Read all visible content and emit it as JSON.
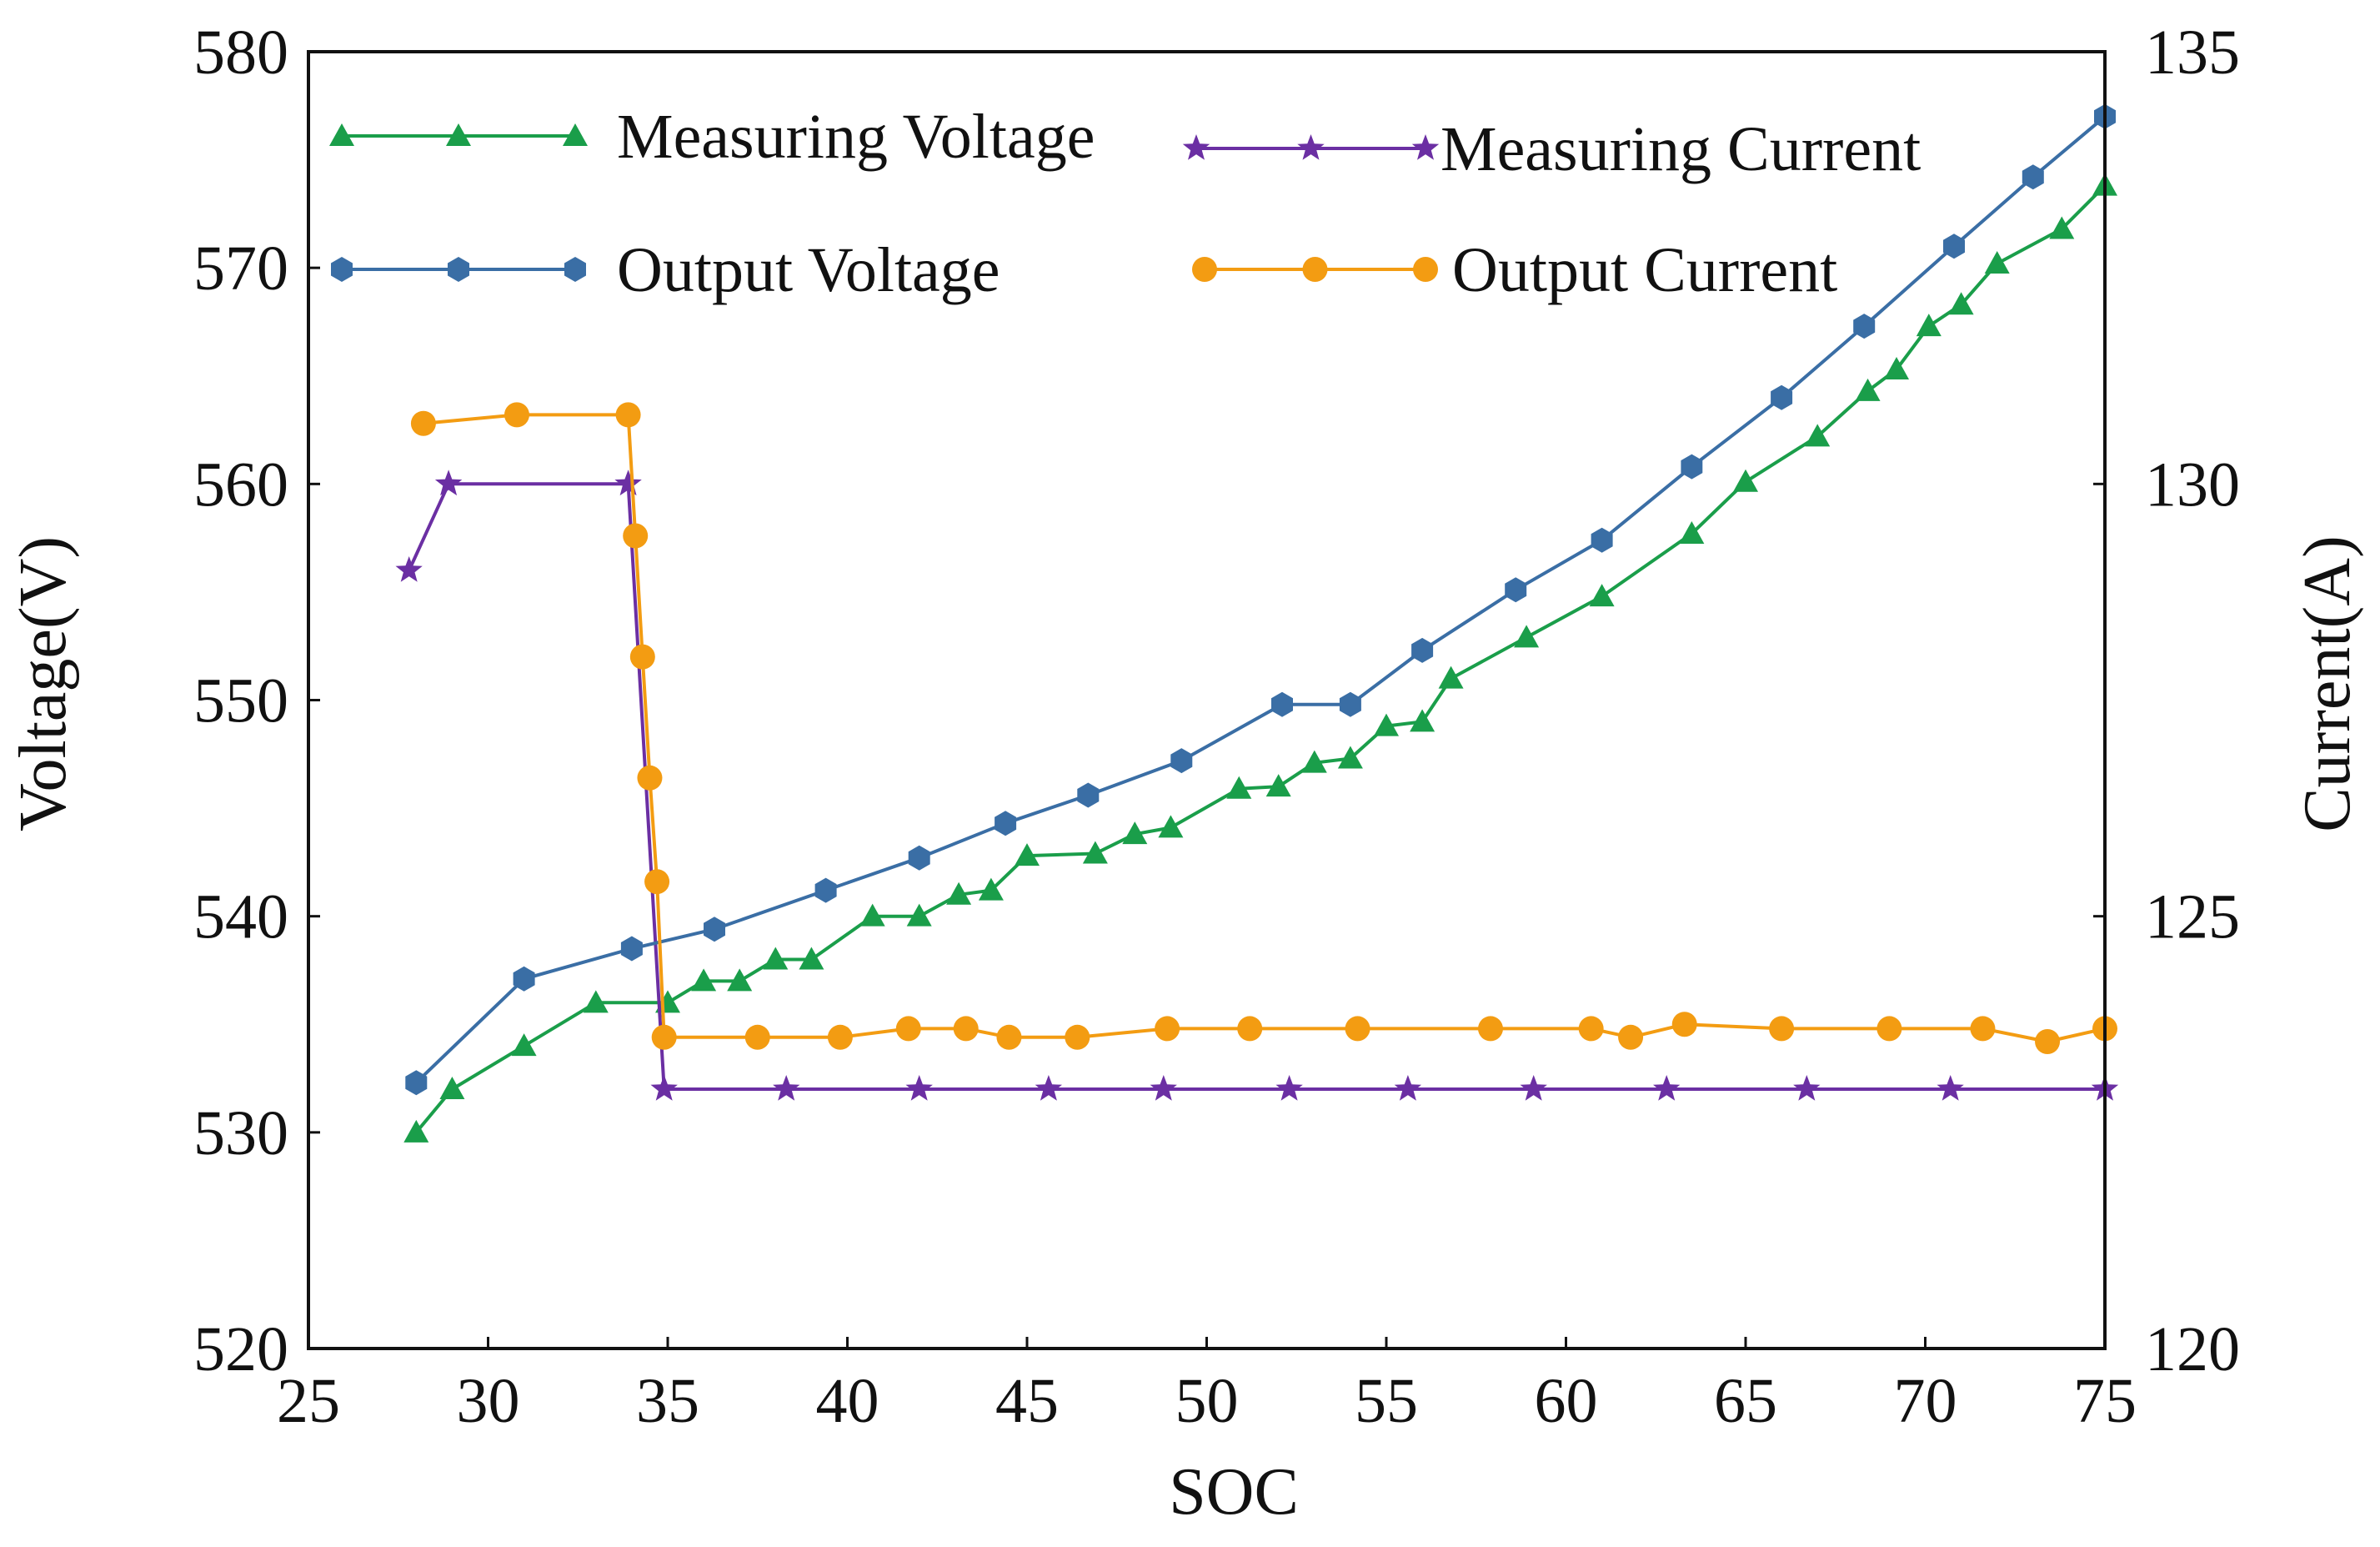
{
  "chart_data": {
    "type": "line",
    "title": "",
    "xlabel": "SOC",
    "ylabel": "Voltage(V)",
    "y2label": "Current(A)",
    "xlim": [
      25,
      75
    ],
    "ylim": [
      520,
      580
    ],
    "y2lim": [
      120,
      135
    ],
    "x_ticks": [
      "25",
      "30",
      "35",
      "40",
      "45",
      "50",
      "55",
      "60",
      "65",
      "70",
      "75"
    ],
    "y_ticks": [
      "520",
      "530",
      "540",
      "550",
      "560",
      "570",
      "580"
    ],
    "y2_ticks": [
      "120",
      "125",
      "130",
      "135"
    ],
    "legend_position": "top",
    "series": [
      {
        "name": "Measuring Voltage",
        "axis": "left",
        "color": "#1a9e4a",
        "marker": "triangle",
        "x": [
          28,
          29,
          31,
          33,
          35,
          36,
          37,
          38,
          39,
          40.7,
          42,
          43.1,
          44,
          45,
          46.9,
          48,
          49,
          50.9,
          52,
          53,
          54,
          55,
          56,
          56.8,
          58.9,
          61,
          63.5,
          65,
          67,
          68.4,
          69.2,
          70.1,
          71,
          72,
          73.8,
          75
        ],
        "y": [
          530,
          532,
          534,
          536,
          536,
          537,
          537,
          538,
          538,
          540,
          540,
          541,
          541.2,
          542.8,
          542.9,
          543.8,
          544.1,
          545.9,
          546,
          547.1,
          547.3,
          548.8,
          549,
          551,
          552.9,
          554.8,
          557.7,
          560.1,
          562.2,
          564.3,
          565.3,
          567.3,
          568.3,
          570.2,
          571.8,
          573.8
        ]
      },
      {
        "name": "Measuring Current",
        "axis": "right",
        "color": "#6b2fa3",
        "marker": "star",
        "x": [
          27.8,
          28.9,
          33.9,
          34.9,
          38.3,
          42,
          45.6,
          48.8,
          52.3,
          55.6,
          59.1,
          62.8,
          66.7,
          70.7,
          75
        ],
        "y": [
          129,
          130,
          130,
          123,
          123,
          123,
          123,
          123,
          123,
          123,
          123,
          123,
          123,
          123,
          123
        ]
      },
      {
        "name": "Output Voltage",
        "axis": "left",
        "color": "#3a6ea5",
        "marker": "hexagon",
        "x": [
          28,
          31,
          34,
          36.3,
          39.4,
          42,
          44.4,
          46.7,
          49.3,
          52.1,
          54,
          56,
          58.6,
          61,
          63.5,
          66,
          68.3,
          70.8,
          73,
          75
        ],
        "y": [
          532.3,
          537.1,
          538.5,
          539.4,
          541.2,
          542.7,
          544.3,
          545.6,
          547.2,
          549.8,
          549.8,
          552.3,
          555.1,
          557.4,
          560.8,
          564,
          567.3,
          571,
          574.2,
          577
        ]
      },
      {
        "name": "Output Current",
        "axis": "right",
        "color": "#f39c12",
        "marker": "circle",
        "x": [
          28.2,
          30.8,
          33.9,
          34.1,
          34.3,
          34.5,
          34.7,
          34.9,
          37.5,
          39.8,
          41.7,
          43.3,
          44.5,
          46.4,
          48.9,
          51.2,
          54.2,
          57.9,
          60.7,
          61.8,
          63.3,
          66,
          69,
          71.6,
          73.4,
          75
        ],
        "y": [
          130.7,
          130.8,
          130.8,
          129.4,
          128,
          126.6,
          125.4,
          123.6,
          123.6,
          123.6,
          123.7,
          123.7,
          123.6,
          123.6,
          123.7,
          123.7,
          123.7,
          123.7,
          123.7,
          123.6,
          123.75,
          123.7,
          123.7,
          123.7,
          123.55,
          123.7
        ]
      }
    ]
  }
}
